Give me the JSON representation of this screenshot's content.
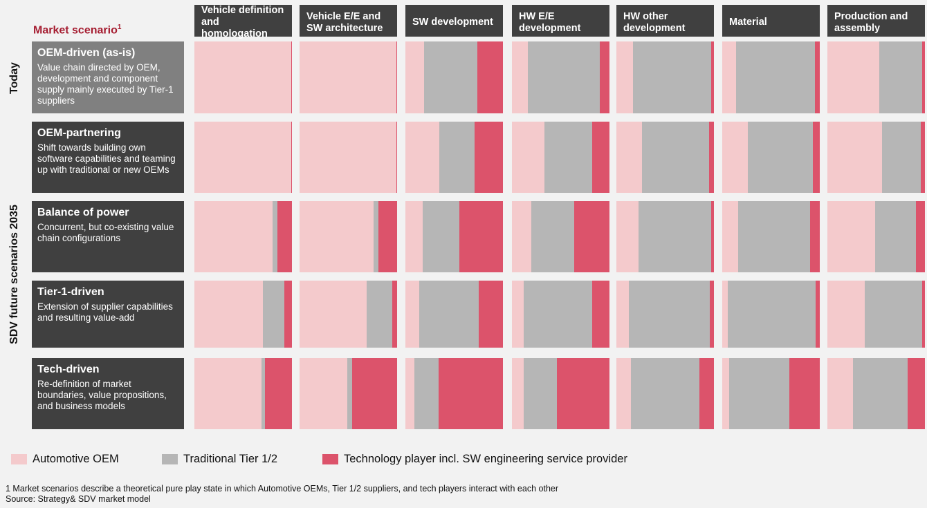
{
  "chart_data": {
    "type": "bar",
    "subtype": "stacked-100-percent-grid",
    "title": "Market scenario",
    "title_footnote": "1",
    "row_groups": [
      {
        "label": "Today"
      },
      {
        "label": "SDV future scenarios 2035"
      }
    ],
    "categories": [
      "Vehicle definition and homologation",
      "Vehicle E/E and SW architecture",
      "SW development",
      "HW E/E development",
      "HW other development",
      "Material",
      "Production and assembly"
    ],
    "series_names": [
      "Automotive OEM",
      "Traditional Tier 1/2",
      "Technology player incl. SW engineering service provider"
    ],
    "colors": [
      "#f4cacc",
      "#b6b6b6",
      "#dc536b"
    ],
    "scenarios": [
      {
        "name": "OEM-driven (as-is)",
        "description": "Value chain directed by OEM, development and component supply mainly executed by Tier-1 suppliers",
        "box_color": "#808080",
        "values": [
          [
            99,
            0,
            1
          ],
          [
            99,
            0,
            1
          ],
          [
            19,
            55,
            26
          ],
          [
            16,
            74,
            10
          ],
          [
            17,
            80,
            3
          ],
          [
            14,
            81,
            5
          ],
          [
            53,
            44,
            3
          ]
        ]
      },
      {
        "name": "OEM-partnering",
        "description": "Shift towards building own software capabilities and teaming up with traditional or new OEMs",
        "box_color": "#404040",
        "values": [
          [
            99,
            0,
            1
          ],
          [
            99,
            0,
            1
          ],
          [
            35,
            36,
            29
          ],
          [
            33,
            49,
            18
          ],
          [
            26,
            69,
            5
          ],
          [
            26,
            67,
            7
          ],
          [
            56,
            40,
            4
          ]
        ]
      },
      {
        "name": "Balance of power",
        "description": "Concurrent, but co-existing value chain configurations",
        "box_color": "#404040",
        "values": [
          [
            80,
            5,
            15
          ],
          [
            76,
            5,
            19
          ],
          [
            18,
            37,
            45
          ],
          [
            20,
            44,
            36
          ],
          [
            23,
            74,
            3
          ],
          [
            16,
            74,
            10
          ],
          [
            49,
            42,
            9
          ]
        ]
      },
      {
        "name": "Tier-1-driven",
        "description": "Extension of supplier capabilities and resulting value-add",
        "box_color": "#404040",
        "values": [
          [
            70,
            22,
            8
          ],
          [
            69,
            26,
            5
          ],
          [
            14,
            61,
            25
          ],
          [
            12,
            70,
            18
          ],
          [
            13,
            83,
            4
          ],
          [
            6,
            90,
            4
          ],
          [
            38,
            59,
            3
          ]
        ]
      },
      {
        "name": "Tech-driven",
        "description": "Re-definition of market boundaries, value propositions, and business models",
        "box_color": "#404040",
        "values": [
          [
            69,
            3,
            28
          ],
          [
            49,
            5,
            46
          ],
          [
            9,
            25,
            66
          ],
          [
            12,
            34,
            54
          ],
          [
            15,
            70,
            15
          ],
          [
            7,
            62,
            31
          ],
          [
            26,
            56,
            18
          ]
        ]
      }
    ]
  },
  "legend": [
    {
      "label": "Automotive OEM"
    },
    {
      "label": "Traditional Tier 1/2"
    },
    {
      "label": "Technology player incl. SW engineering service provider"
    }
  ],
  "footnote": "1 Market scenarios describe a theoretical pure play state in which Automotive OEMs, Tier 1/2 suppliers, and tech players interact with each other",
  "source": "Source: Strategy& SDV market model"
}
